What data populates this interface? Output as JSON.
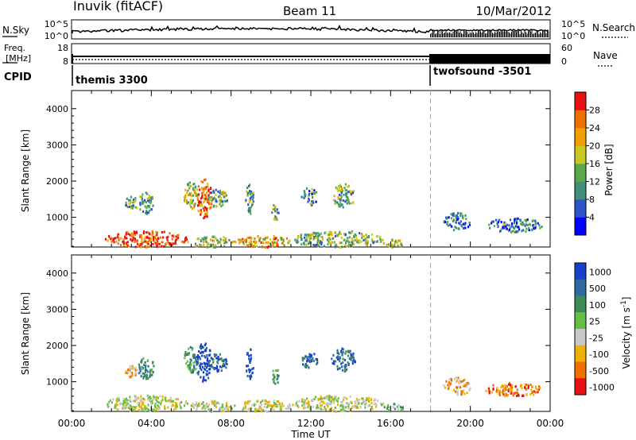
{
  "header": {
    "station": "Inuvik (fitACF)",
    "beam": "Beam 11",
    "date": "10/Mar/2012"
  },
  "top_panels": {
    "nsky_label": "N.Sky",
    "nsky_ticks": [
      "10^5",
      "10^0"
    ],
    "nsearch_label": "N.Search",
    "nsearch_ticks": [
      "10^5",
      "10^0"
    ],
    "freq_label_1": "Freq.",
    "freq_label_2": "[MHz]",
    "freq_ticks": [
      "18",
      "8"
    ],
    "nave_label": "Nave",
    "nave_ticks": [
      "60",
      "0"
    ],
    "cpid_label": "CPID",
    "cpid_segments": [
      {
        "name": "themis 3300",
        "start_hour": 0.0
      },
      {
        "name": "twofsound -3501",
        "start_hour": 18.0
      }
    ]
  },
  "chart_data": [
    {
      "type": "heatmap",
      "title": "Power",
      "ylabel": "Slant Range [km]",
      "xlabel": "Time UT",
      "ylim": [
        180,
        4500
      ],
      "yticks": [
        "1000",
        "2000",
        "3000",
        "4000"
      ],
      "xlim_hours": [
        0,
        24
      ],
      "xticks": [
        "00:00",
        "04:00",
        "08:00",
        "12:00",
        "16:00",
        "20:00",
        "00:00"
      ],
      "colorbar": {
        "label": "Power [dB]",
        "range": [
          0,
          32
        ],
        "ticks": [
          "4",
          "8",
          "12",
          "16",
          "20",
          "24",
          "28"
        ],
        "colors": [
          "#0000ff",
          "#2a54c8",
          "#3f8f7a",
          "#5aa84a",
          "#c8c820",
          "#f0a000",
          "#f07000",
          "#e81010"
        ]
      },
      "marker_hour": 18.0,
      "blobs": [
        {
          "t0": 2.6,
          "t1": 3.4,
          "r0": 1250,
          "r1": 1600,
          "v": 10
        },
        {
          "t0": 3.3,
          "t1": 4.1,
          "r0": 1100,
          "r1": 1750,
          "v": 9
        },
        {
          "t0": 5.6,
          "t1": 6.3,
          "r0": 1250,
          "r1": 2000,
          "v": 14
        },
        {
          "t0": 6.2,
          "t1": 7.0,
          "r0": 1000,
          "r1": 2100,
          "v": 25
        },
        {
          "t0": 6.8,
          "t1": 7.8,
          "r0": 1300,
          "r1": 1800,
          "v": 12
        },
        {
          "t0": 8.7,
          "t1": 9.1,
          "r0": 1100,
          "r1": 1950,
          "v": 10
        },
        {
          "t0": 10.0,
          "t1": 10.4,
          "r0": 950,
          "r1": 1400,
          "v": 12
        },
        {
          "t0": 11.5,
          "t1": 12.3,
          "r0": 1350,
          "r1": 1850,
          "v": 9
        },
        {
          "t0": 13.0,
          "t1": 14.2,
          "r0": 1300,
          "r1": 1950,
          "v": 11
        },
        {
          "t0": 18.6,
          "t1": 20.0,
          "r0": 650,
          "r1": 1150,
          "v": 6
        },
        {
          "t0": 20.7,
          "t1": 23.6,
          "r0": 620,
          "r1": 1000,
          "v": 7
        },
        {
          "t0": 1.6,
          "t1": 5.8,
          "r0": 200,
          "r1": 650,
          "v": 26
        },
        {
          "t0": 5.8,
          "t1": 8.2,
          "r0": 200,
          "r1": 500,
          "v": 14
        },
        {
          "t0": 8.2,
          "t1": 11.0,
          "r0": 200,
          "r1": 520,
          "v": 20
        },
        {
          "t0": 11.0,
          "t1": 15.6,
          "r0": 200,
          "r1": 650,
          "v": 12
        },
        {
          "t0": 15.6,
          "t1": 16.6,
          "r0": 200,
          "r1": 420,
          "v": 16
        }
      ]
    },
    {
      "type": "heatmap",
      "title": "Velocity",
      "ylabel": "Slant Range [km]",
      "xlabel": "Time UT",
      "ylim": [
        180,
        4500
      ],
      "yticks": [
        "1000",
        "2000",
        "3000",
        "4000"
      ],
      "xlim_hours": [
        0,
        24
      ],
      "xticks": [
        "00:00",
        "04:00",
        "08:00",
        "12:00",
        "16:00",
        "20:00",
        "00:00"
      ],
      "colorbar": {
        "label": "Velocity [m s^-1]",
        "ticks": [
          "1000",
          "500",
          "100",
          "25",
          "-25",
          "-100",
          "-500",
          "-1000"
        ],
        "colors": [
          "#1840c8",
          "#2e6aa0",
          "#3c8c58",
          "#64c040",
          "#c8c8c8",
          "#f0b000",
          "#f07000",
          "#e81010"
        ]
      },
      "marker_hour": 18.0,
      "blobs": [
        {
          "t0": 2.6,
          "t1": 3.4,
          "r0": 1150,
          "r1": 1500,
          "v": 5
        },
        {
          "t0": 3.3,
          "t1": 4.1,
          "r0": 1100,
          "r1": 1750,
          "v": 2
        },
        {
          "t0": 5.6,
          "t1": 6.3,
          "r0": 1250,
          "r1": 2000,
          "v": 2
        },
        {
          "t0": 6.2,
          "t1": 7.0,
          "r0": 1000,
          "r1": 2100,
          "v": 0
        },
        {
          "t0": 6.8,
          "t1": 7.8,
          "r0": 1300,
          "r1": 1800,
          "v": 1
        },
        {
          "t0": 8.7,
          "t1": 9.1,
          "r0": 1100,
          "r1": 1950,
          "v": 0
        },
        {
          "t0": 10.0,
          "t1": 10.4,
          "r0": 950,
          "r1": 1400,
          "v": 2
        },
        {
          "t0": 11.5,
          "t1": 12.3,
          "r0": 1350,
          "r1": 1850,
          "v": 1
        },
        {
          "t0": 13.0,
          "t1": 14.2,
          "r0": 1300,
          "r1": 1950,
          "v": 1
        },
        {
          "t0": 18.6,
          "t1": 20.0,
          "r0": 650,
          "r1": 1150,
          "v": 5
        },
        {
          "t0": 20.7,
          "t1": 23.6,
          "r0": 620,
          "r1": 1000,
          "v": 6
        },
        {
          "t0": 1.6,
          "t1": 5.8,
          "r0": 200,
          "r1": 650,
          "v": 4
        },
        {
          "t0": 5.8,
          "t1": 8.2,
          "r0": 200,
          "r1": 500,
          "v": 4
        },
        {
          "t0": 8.2,
          "t1": 11.0,
          "r0": 200,
          "r1": 520,
          "v": 4
        },
        {
          "t0": 11.0,
          "t1": 15.6,
          "r0": 200,
          "r1": 650,
          "v": 4
        },
        {
          "t0": 15.6,
          "t1": 16.6,
          "r0": 200,
          "r1": 420,
          "v": 3
        }
      ]
    }
  ]
}
